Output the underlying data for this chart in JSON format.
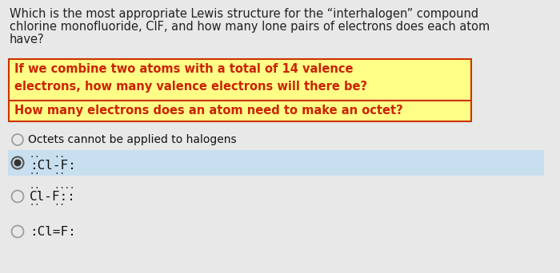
{
  "bg_color": "#e8e8e8",
  "title_text_line1": "Which is the most appropriate Lewis structure for the “interhalogen” compound",
  "title_text_line2": "chlorine monofluoride, ClF, and how many lone pairs of electrons does each atom",
  "title_text_line3": "have?",
  "title_fontsize": 10.5,
  "title_color": "#222222",
  "highlight1_text": "If we combine two atoms with a total of 14 valence\nelectrons, how many valence electrons will there be?",
  "highlight2_text": "How many electrons does an atom need to make an octet?",
  "highlight_bg": "#ffff88",
  "highlight_border": "#cc3300",
  "highlight_text_color": "#cc2200",
  "highlight_fontsize": 10.5,
  "option0_text": "Octets cannot be applied to halogens",
  "option1_main": ":Cl-F:",
  "option2_main": "Cl-F::",
  "option3_main": ":Cl=F:",
  "option_fontsize": 11,
  "option_selected_bg": "#c8dff0",
  "option_text_color": "#111111",
  "dots_color": "#111111"
}
